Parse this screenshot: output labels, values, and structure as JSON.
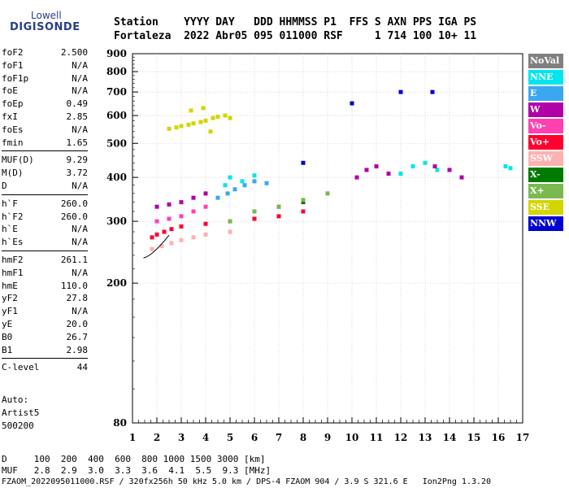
{
  "logo": {
    "line1": "Lowell",
    "line2": "DIGISONDE"
  },
  "header": {
    "row1": "Station    YYYY DAY   DDD HHMMSS P1  FFS S AXN PPS IGA PS",
    "row2": "Fortaleza  2022 Abr05 095 011000 RSF     1 714 100 10+ 11"
  },
  "params": [
    {
      "name": "foF2",
      "value": "2.500"
    },
    {
      "name": "foF1",
      "value": "N/A"
    },
    {
      "name": "foF1p",
      "value": "N/A"
    },
    {
      "name": "foE",
      "value": "N/A"
    },
    {
      "name": "foEp",
      "value": "0.49"
    },
    {
      "name": "fxI",
      "value": "2.85"
    },
    {
      "name": "foEs",
      "value": "N/A"
    },
    {
      "name": "fmin",
      "value": "1.65"
    },
    {
      "name": "MUF(D)",
      "value": "9.29"
    },
    {
      "name": "M(D)",
      "value": "3.72"
    },
    {
      "name": "D",
      "value": "N/A"
    },
    {
      "name": "h`F",
      "value": "260.0"
    },
    {
      "name": "h`F2",
      "value": "260.0"
    },
    {
      "name": "h`E",
      "value": "N/A"
    },
    {
      "name": "h`Es",
      "value": "N/A"
    },
    {
      "name": "hmF2",
      "value": "261.1"
    },
    {
      "name": "hmF1",
      "value": "N/A"
    },
    {
      "name": "hmE",
      "value": "110.0"
    },
    {
      "name": "yF2",
      "value": "27.8"
    },
    {
      "name": "yF1",
      "value": "N/A"
    },
    {
      "name": "yE",
      "value": "20.0"
    },
    {
      "name": "B0",
      "value": "26.7"
    },
    {
      "name": "B1",
      "value": "2.98"
    },
    {
      "name": "C-level",
      "value": "44"
    }
  ],
  "auto": [
    "Auto:",
    "Artist5",
    "500200"
  ],
  "legend": [
    {
      "label": "NoVal",
      "color": "#808080"
    },
    {
      "label": "NNE",
      "color": "#00e5ee"
    },
    {
      "label": "E",
      "color": "#3aa8f0"
    },
    {
      "label": "W",
      "color": "#b000a8"
    },
    {
      "label": "Vo-",
      "color": "#ff40b0"
    },
    {
      "label": "Vo+",
      "color": "#ff0030"
    },
    {
      "label": "SSW",
      "color": "#ffb0b0"
    },
    {
      "label": "X-",
      "color": "#007a00"
    },
    {
      "label": "X+",
      "color": "#7ab850"
    },
    {
      "label": "SSE",
      "color": "#d4d400"
    },
    {
      "label": "NNW",
      "color": "#0000d0"
    }
  ],
  "bottom": {
    "line1": "D     100  200  400  600  800 1000 1500 3000 [km]",
    "line2": "MUF   2.8  2.9  3.0  3.3  3.6  4.1  5.5  9.3 [MHz]",
    "line3": "FZAOM_2022095011000.RSF / 320fx256h 50 kHz 5.0 km / DPS-4 FZAOM 904 / 3.9 S 321.6 E   Ion2Png 1.3.20"
  },
  "chart_data": {
    "type": "scatter",
    "title": "",
    "xlabel": "",
    "ylabel": "",
    "xlim": [
      1,
      17
    ],
    "ylim": [
      80,
      900
    ],
    "y_scale": "log",
    "xticks": [
      1,
      2,
      3,
      4,
      5,
      6,
      7,
      8,
      9,
      10,
      11,
      12,
      13,
      14,
      15,
      16,
      17
    ],
    "yticks": [
      80,
      200,
      300,
      400,
      500,
      600,
      700,
      800,
      900
    ],
    "grid": true,
    "legend_position": "right",
    "series": [
      {
        "name": "SSE",
        "x": [
          2.5,
          2.8,
          3.0,
          3.3,
          3.5,
          3.8,
          4.0,
          4.3,
          4.5,
          4.8,
          5.0,
          3.4,
          3.9,
          4.2
        ],
        "y": [
          550,
          555,
          560,
          565,
          570,
          575,
          580,
          590,
          595,
          600,
          590,
          620,
          630,
          540
        ]
      },
      {
        "name": "NNE",
        "x": [
          4.8,
          5.0,
          5.5,
          6.0,
          12.0,
          12.5,
          13.0,
          13.5,
          16.3,
          16.5
        ],
        "y": [
          380,
          400,
          390,
          405,
          410,
          430,
          440,
          420,
          430,
          425
        ]
      },
      {
        "name": "E",
        "x": [
          4.5,
          4.9,
          5.2,
          5.6,
          6.0,
          6.5
        ],
        "y": [
          350,
          360,
          370,
          380,
          390,
          385
        ]
      },
      {
        "name": "W",
        "x": [
          2.0,
          2.5,
          3.0,
          3.5,
          4.0,
          10.2,
          10.6,
          11.0,
          11.5,
          13.4,
          14.0,
          14.5
        ],
        "y": [
          330,
          335,
          340,
          350,
          360,
          400,
          420,
          430,
          410,
          430,
          420,
          400
        ]
      },
      {
        "name": "Vo-",
        "x": [
          2.0,
          2.5,
          3.0,
          3.5,
          4.0
        ],
        "y": [
          300,
          305,
          310,
          320,
          330
        ]
      },
      {
        "name": "Vo+",
        "x": [
          1.8,
          2.0,
          2.3,
          2.6,
          3.0,
          4.0,
          5.0,
          6.0,
          7.0,
          8.0
        ],
        "y": [
          270,
          275,
          280,
          285,
          290,
          295,
          300,
          305,
          310,
          320
        ]
      },
      {
        "name": "SSW",
        "x": [
          1.8,
          2.2,
          2.6,
          3.0,
          3.5,
          4.0,
          5.0
        ],
        "y": [
          250,
          255,
          260,
          265,
          270,
          275,
          280
        ]
      },
      {
        "name": "X-",
        "x": [
          6.0,
          7.0,
          8.0
        ],
        "y": [
          320,
          330,
          340
        ]
      },
      {
        "name": "X+",
        "x": [
          5.0,
          6.0,
          7.0,
          8.0,
          9.0
        ],
        "y": [
          300,
          320,
          330,
          345,
          360
        ]
      },
      {
        "name": "NNW",
        "x": [
          8.0,
          10.0,
          12.0,
          13.3
        ],
        "y": [
          440,
          650,
          700,
          700
        ]
      }
    ]
  }
}
